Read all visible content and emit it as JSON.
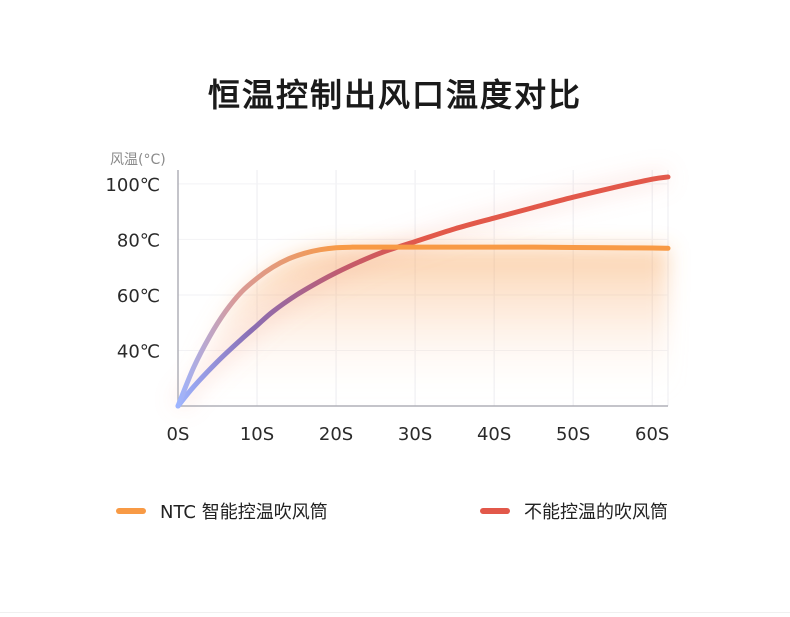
{
  "chart_data": {
    "type": "line",
    "title": "恒温控制出风口温度对比",
    "ylabel": "风温(°C)",
    "xlabel": "",
    "x_ticks": [
      "0S",
      "10S",
      "20S",
      "30S",
      "40S",
      "50S",
      "60S"
    ],
    "y_ticks": [
      "40℃",
      "60℃",
      "80℃",
      "100℃"
    ],
    "y_tick_values": [
      40,
      60,
      80,
      100
    ],
    "x_tick_values": [
      0,
      10,
      20,
      30,
      40,
      50,
      60
    ],
    "xlim": [
      0,
      62
    ],
    "ylim": [
      20,
      105
    ],
    "grid": true,
    "legend_position": "bottom",
    "series": [
      {
        "name": "NTC 智能控温吹风筒",
        "color": "#f89a45",
        "x": [
          0,
          2,
          4,
          6,
          8,
          10,
          12,
          14,
          16,
          18,
          20,
          22,
          25,
          30,
          35,
          40,
          45,
          50,
          55,
          60,
          62
        ],
        "y": [
          20,
          34,
          45,
          54,
          61,
          66,
          70,
          73,
          75,
          76.3,
          77,
          77.2,
          77.2,
          77.2,
          77.2,
          77.2,
          77.2,
          77.1,
          77,
          76.9,
          76.8
        ]
      },
      {
        "name": "不能控温的吹风筒",
        "color": "#e2584a",
        "x": [
          0,
          2,
          5,
          8,
          10,
          12,
          15,
          18,
          20,
          23,
          26,
          30,
          35,
          40,
          45,
          50,
          55,
          60,
          62
        ],
        "y": [
          20,
          27,
          36,
          44,
          49,
          54,
          60,
          65,
          68,
          72,
          75.5,
          79.2,
          83.8,
          87.7,
          91.5,
          95.2,
          98.6,
          101.7,
          102.5
        ]
      }
    ]
  }
}
